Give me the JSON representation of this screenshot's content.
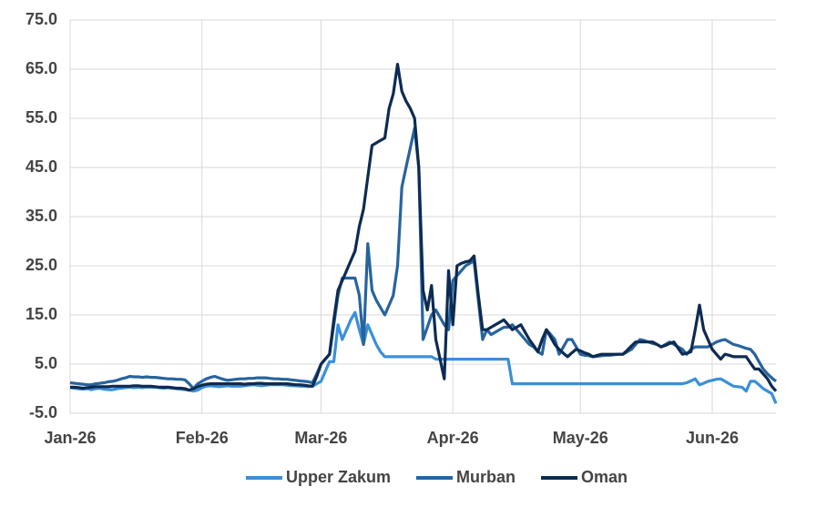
{
  "chart_data": {
    "type": "line",
    "categories": [
      "Jan-26",
      null,
      null,
      null,
      null,
      null,
      null,
      null,
      null,
      null,
      null,
      null,
      null,
      null,
      null,
      null,
      null,
      null,
      null,
      null,
      null,
      null,
      null,
      null,
      null,
      null,
      null,
      null,
      null,
      null,
      null,
      "Feb-26",
      null,
      null,
      null,
      null,
      null,
      null,
      null,
      null,
      null,
      null,
      null,
      null,
      null,
      null,
      null,
      null,
      null,
      null,
      null,
      null,
      null,
      null,
      null,
      null,
      null,
      null,
      null,
      "Mar-26",
      null,
      null,
      null,
      null,
      null,
      null,
      null,
      null,
      null,
      null,
      null,
      null,
      null,
      null,
      null,
      null,
      null,
      null,
      null,
      null,
      null,
      null,
      null,
      null,
      null,
      null,
      null,
      null,
      null,
      null,
      "Apr-26",
      null,
      null,
      null,
      null,
      null,
      null,
      null,
      null,
      null,
      null,
      null,
      null,
      null,
      null,
      null,
      null,
      null,
      null,
      null,
      null,
      null,
      null,
      null,
      null,
      null,
      null,
      null,
      null,
      null,
      "May-26",
      null,
      null,
      null,
      null,
      null,
      null,
      null,
      null,
      null,
      null,
      null,
      null,
      null,
      null,
      null,
      null,
      null,
      null,
      null,
      null,
      null,
      null,
      null,
      null,
      null,
      null,
      null,
      null,
      null,
      null,
      "Jun-26",
      null,
      null,
      null,
      null,
      null,
      null,
      null,
      null,
      null,
      null,
      null,
      null,
      null,
      null,
      null
    ],
    "series": [
      {
        "name": "Upper Zakum",
        "color": "#3a8fd9",
        "values": [
          0.2,
          0.1,
          0,
          -0.1,
          0,
          -0.2,
          0,
          0.1,
          -0.1,
          -0.2,
          -0.2,
          0,
          0.1,
          0.2,
          0.3,
          0.2,
          0.3,
          0.2,
          0.3,
          0.3,
          0.3,
          0.2,
          0.1,
          0.2,
          0.1,
          0,
          -0.1,
          -0.2,
          -0.3,
          -0.5,
          -0.3,
          0.2,
          0.5,
          0.6,
          0.5,
          0.4,
          0.5,
          0.6,
          0.5,
          0.5,
          0.5,
          0.6,
          0.7,
          0.8,
          0.7,
          0.6,
          0.7,
          0.8,
          0.8,
          0.8,
          0.8,
          0.7,
          0.6,
          0.6,
          0.5,
          0.5,
          0.4,
          0.5,
          1,
          1.5,
          3.5,
          5.5,
          5.5,
          13,
          10,
          12,
          14,
          15.5,
          12,
          9,
          13,
          11,
          9,
          7.5,
          6.5,
          6.5,
          6.5,
          6.5,
          6.5,
          6.5,
          6.5,
          6.5,
          6.5,
          6.5,
          6.5,
          6.5,
          6,
          6,
          6,
          6,
          6,
          6,
          6,
          6,
          6,
          6,
          6,
          6,
          6,
          6,
          6,
          6,
          6,
          6,
          1,
          1,
          1,
          1,
          1,
          1,
          1,
          1,
          1,
          1,
          1,
          1,
          1,
          1,
          1,
          1,
          1,
          1,
          1,
          1,
          1,
          1,
          1,
          1,
          1,
          1,
          1,
          1,
          1,
          1,
          1,
          1,
          1,
          1,
          1,
          1,
          1,
          1,
          1,
          1,
          1,
          1.2,
          1.6,
          2,
          0.8,
          1.1,
          1.5,
          1.7,
          1.9,
          2,
          1.5,
          1,
          0.5,
          0.4,
          0.3,
          -0.5,
          1.5,
          1.5,
          0.8,
          0,
          -0.5,
          -1,
          -3
        ]
      },
      {
        "name": "Murban",
        "color": "#27649e",
        "values": [
          1.2,
          1.1,
          1,
          0.9,
          0.8,
          0.8,
          1,
          1.1,
          1.2,
          1.4,
          1.5,
          1.7,
          2,
          2.2,
          2.5,
          2.4,
          2.4,
          2.3,
          2.4,
          2.3,
          2.3,
          2.2,
          2.1,
          2,
          2,
          1.9,
          1.9,
          1.8,
          1,
          0,
          1,
          1.5,
          2,
          2.3,
          2.5,
          2.2,
          1.9,
          1.7,
          1.8,
          1.9,
          2,
          2,
          2.1,
          2.1,
          2.2,
          2.2,
          2.2,
          2.1,
          2,
          2,
          1.9,
          1.9,
          1.8,
          1.7,
          1.6,
          1.5,
          1.4,
          1.2,
          3,
          5,
          6,
          7,
          13,
          19,
          22.5,
          22.5,
          22.5,
          22.5,
          19,
          9,
          29.5,
          20,
          18,
          16.5,
          15,
          17,
          19,
          25,
          41,
          45,
          49,
          53,
          45,
          10,
          12.5,
          15,
          16,
          14.5,
          13,
          12,
          22,
          23,
          24,
          25,
          25.5,
          26,
          18,
          10,
          12,
          11,
          11.5,
          12,
          12.5,
          12.5,
          13,
          12,
          11,
          10,
          9,
          8.5,
          7.5,
          7,
          12,
          11,
          10,
          7,
          8.5,
          10,
          10,
          8.5,
          7,
          6.8,
          6.7,
          6.5,
          6.6,
          6.7,
          6.8,
          6.8,
          6.9,
          7,
          7,
          7.5,
          8,
          9,
          10,
          9.8,
          9.5,
          9.2,
          9,
          8.5,
          9,
          9.5,
          9,
          8.5,
          8,
          7,
          8,
          8.5,
          8.5,
          8.5,
          8.5,
          9,
          9.5,
          9.8,
          10,
          9.5,
          9,
          8.8,
          8.5,
          8.2,
          8,
          7,
          5.5,
          4,
          3,
          2.2,
          1.5
        ]
      },
      {
        "name": "Oman",
        "color": "#0d2b52",
        "values": [
          0.3,
          0.3,
          0.2,
          0.1,
          0.2,
          0.3,
          0.4,
          0.4,
          0.4,
          0.4,
          0.5,
          0.5,
          0.5,
          0.5,
          0.5,
          0.6,
          0.6,
          0.5,
          0.5,
          0.5,
          0.4,
          0.3,
          0.3,
          0.3,
          0.2,
          0.1,
          0.1,
          0,
          -0.3,
          0,
          0.4,
          0.7,
          0.9,
          1,
          1,
          1,
          1,
          1,
          1,
          1,
          1,
          0.9,
          1,
          1,
          1.1,
          1.1,
          1,
          1,
          1,
          1,
          1,
          1,
          0.9,
          0.8,
          0.8,
          0.7,
          0.6,
          0.5,
          2.5,
          5,
          6,
          7,
          14,
          20,
          22,
          24,
          26,
          28,
          33,
          36.5,
          43,
          49.5,
          50,
          50.5,
          51,
          57,
          60,
          66,
          60.5,
          58.5,
          57,
          55,
          45,
          20,
          16,
          21,
          10,
          6,
          2,
          24,
          13,
          25,
          25.5,
          25.8,
          26,
          27,
          19,
          12,
          12,
          12.5,
          13,
          13.5,
          14,
          13,
          12,
          12.5,
          13,
          11.5,
          10,
          8.8,
          7.5,
          10,
          12,
          10.5,
          9,
          8,
          7.2,
          6.5,
          7.3,
          8,
          7.7,
          7.3,
          7,
          6.5,
          6.8,
          7,
          7,
          7,
          7,
          7,
          7,
          7.8,
          8.7,
          9.5,
          9.5,
          9.5,
          9.5,
          9.5,
          9,
          8.5,
          8.8,
          9.2,
          9.5,
          8.2,
          7,
          7.2,
          7.5,
          12,
          17,
          12,
          10,
          8,
          7,
          6,
          7,
          6.8,
          6.5,
          6.5,
          6.5,
          6.5,
          5.2,
          4,
          4,
          3,
          2,
          0.5,
          -0.5
        ]
      }
    ],
    "ylim": [
      -5,
      75
    ],
    "yticks": [
      {
        "value": -5,
        "label": "-5.0"
      },
      {
        "value": 5,
        "label": "5.0"
      },
      {
        "value": 15,
        "label": "15.0"
      },
      {
        "value": 25,
        "label": "25.0"
      },
      {
        "value": 35,
        "label": "35.0"
      },
      {
        "value": 45,
        "label": "45.0"
      },
      {
        "value": 55,
        "label": "55.0"
      },
      {
        "value": 65,
        "label": "65.0"
      },
      {
        "value": 75,
        "label": "75.0"
      }
    ],
    "grid": true,
    "legend": "bottom"
  }
}
